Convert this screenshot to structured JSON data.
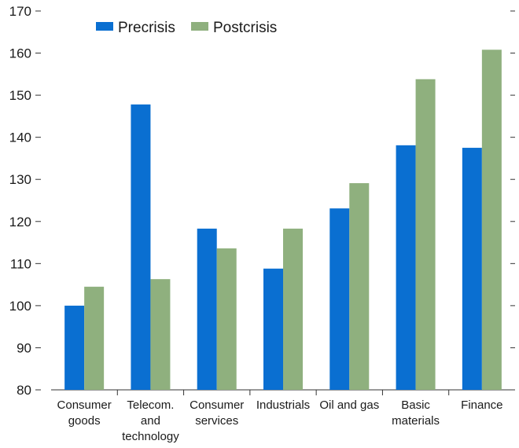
{
  "chart_data": {
    "type": "bar",
    "categories": [
      [
        "Consumer",
        "goods"
      ],
      [
        "Telecom.",
        "and",
        "technology"
      ],
      [
        "Consumer",
        "services"
      ],
      [
        "Industrials"
      ],
      [
        "Oil and gas"
      ],
      [
        "Basic",
        "materials"
      ],
      [
        "Finance"
      ]
    ],
    "series": [
      {
        "name": "Precrisis",
        "color": "#0a6fd1",
        "values": [
          100,
          147.8,
          118.3,
          108.8,
          123.1,
          138.1,
          137.5
        ]
      },
      {
        "name": "Postcrisis",
        "color": "#8fb07e",
        "values": [
          104.5,
          106.3,
          113.6,
          118.3,
          129.1,
          153.8,
          160.8
        ]
      }
    ],
    "ylim": [
      80,
      170
    ],
    "yticks": [
      80,
      90,
      100,
      110,
      120,
      130,
      140,
      150,
      160,
      170
    ],
    "legend_position": "top-left",
    "grid": false
  }
}
